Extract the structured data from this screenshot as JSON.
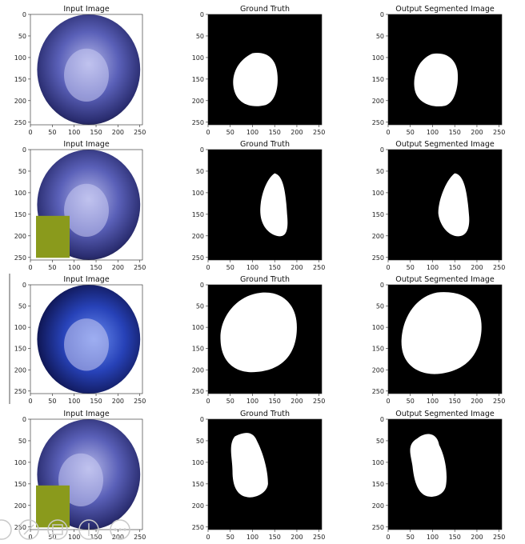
{
  "figure": {
    "rows": [
      {
        "panels": [
          {
            "title": "Input Image",
            "kind": "endoscopy"
          },
          {
            "title": "Ground Truth",
            "kind": "mask"
          },
          {
            "title": "Output Segmented Image",
            "kind": "mask"
          }
        ]
      },
      {
        "panels": [
          {
            "title": "Input Image",
            "kind": "endoscopy"
          },
          {
            "title": "Ground Truth",
            "kind": "mask"
          },
          {
            "title": "Output Segmented Image",
            "kind": "mask"
          }
        ]
      },
      {
        "panels": [
          {
            "title": "Input Image",
            "kind": "endoscopy"
          },
          {
            "title": "Ground Truth",
            "kind": "mask"
          },
          {
            "title": "Output Segmented Image",
            "kind": "mask"
          }
        ]
      },
      {
        "panels": [
          {
            "title": "Input Image",
            "kind": "endoscopy"
          },
          {
            "title": "Ground Truth",
            "kind": "mask"
          },
          {
            "title": "Output Segmented Image",
            "kind": "mask"
          }
        ]
      }
    ],
    "axes": {
      "x_ticks": [
        "0",
        "50",
        "100",
        "150",
        "200",
        "250"
      ],
      "y_ticks": [
        "0",
        "50",
        "100",
        "150",
        "200",
        "250"
      ],
      "range": [
        0,
        256
      ]
    },
    "colors": {
      "mask_bg": "#000000",
      "mask_fg": "#ffffff",
      "endo_dark": "#0d0d1f",
      "endo_mid": "#4a4fa8",
      "endo_light": "#9aa0dc",
      "overlay_box": "#8a9a1c"
    }
  },
  "viewer_controls": [
    "zoom-out-icon",
    "zoom-in-icon",
    "fit-page-icon",
    "rotate-icon",
    "more-icon"
  ]
}
